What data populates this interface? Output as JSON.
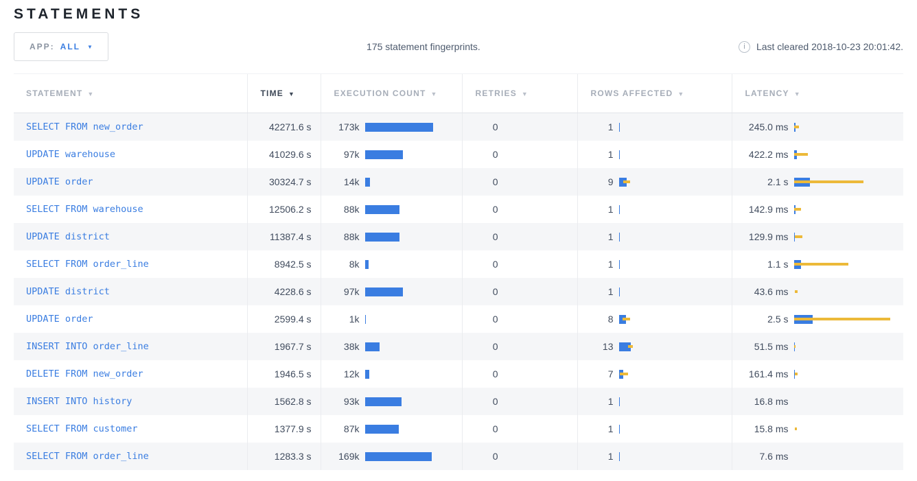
{
  "page": {
    "title": "STATEMENTS"
  },
  "toolbar": {
    "app_filter": {
      "label": "APP:",
      "value": "ALL",
      "caret": "▼"
    },
    "summary": "175 statement fingerprints.",
    "info_icon": "i",
    "last_cleared": "Last cleared 2018-10-23 20:01:42."
  },
  "colors": {
    "bar_blue": "#3a7de1",
    "whisker_yellow": "#ecb939",
    "link_blue": "#3a7de1"
  },
  "table": {
    "columns": [
      {
        "key": "statement",
        "label": "STATEMENT",
        "sort_icon": "▼",
        "active": false
      },
      {
        "key": "time",
        "label": "TIME",
        "sort_icon": "▼",
        "active": true
      },
      {
        "key": "execution-count",
        "label": "EXECUTION COUNT",
        "sort_icon": "▼",
        "active": false
      },
      {
        "key": "retries",
        "label": "RETRIES",
        "sort_icon": "▼",
        "active": false
      },
      {
        "key": "rows-affected",
        "label": "ROWS AFFECTED",
        "sort_icon": "▼",
        "active": false
      },
      {
        "key": "latency",
        "label": "LATENCY",
        "sort_icon": "▼",
        "active": false
      }
    ],
    "rows": [
      {
        "statement": "SELECT FROM new_order",
        "time": "42271.6 s",
        "execution": {
          "label": "173k",
          "bar": 99
        },
        "retries": "0",
        "rows_affected": {
          "label": "1",
          "bar": 1.5,
          "whisker": null
        },
        "latency": {
          "label": "245.0 ms",
          "bar": 2.5,
          "whisker": [
            0,
            7
          ]
        }
      },
      {
        "statement": "UPDATE warehouse",
        "time": "41029.6 s",
        "execution": {
          "label": "97k",
          "bar": 55
        },
        "retries": "0",
        "rows_affected": {
          "label": "1",
          "bar": 1.5,
          "whisker": null
        },
        "latency": {
          "label": "422.2 ms",
          "bar": 4,
          "whisker": [
            0,
            20
          ]
        }
      },
      {
        "statement": "UPDATE order",
        "time": "30324.7 s",
        "execution": {
          "label": "14k",
          "bar": 7
        },
        "retries": "0",
        "rows_affected": {
          "label": "9",
          "bar": 11,
          "whisker": [
            6,
            16
          ]
        },
        "latency": {
          "label": "2.1 s",
          "bar": 23,
          "whisker": [
            0,
            101
          ]
        }
      },
      {
        "statement": "SELECT FROM warehouse",
        "time": "12506.2 s",
        "execution": {
          "label": "88k",
          "bar": 50
        },
        "retries": "0",
        "rows_affected": {
          "label": "1",
          "bar": 1.5,
          "whisker": null
        },
        "latency": {
          "label": "142.9 ms",
          "bar": 2,
          "whisker": [
            0,
            10
          ]
        }
      },
      {
        "statement": "UPDATE district",
        "time": "11387.4 s",
        "execution": {
          "label": "88k",
          "bar": 50
        },
        "retries": "0",
        "rows_affected": {
          "label": "1",
          "bar": 1.5,
          "whisker": null
        },
        "latency": {
          "label": "129.9 ms",
          "bar": 1.5,
          "whisker": [
            1,
            12
          ]
        }
      },
      {
        "statement": "SELECT FROM order_line",
        "time": "8942.5 s",
        "execution": {
          "label": "8k",
          "bar": 5
        },
        "retries": "0",
        "rows_affected": {
          "label": "1",
          "bar": 1.5,
          "whisker": null
        },
        "latency": {
          "label": "1.1 s",
          "bar": 10,
          "whisker": [
            0,
            79
          ]
        }
      },
      {
        "statement": "UPDATE district",
        "time": "4228.6 s",
        "execution": {
          "label": "97k",
          "bar": 55
        },
        "retries": "0",
        "rows_affected": {
          "label": "1",
          "bar": 1.5,
          "whisker": null
        },
        "latency": {
          "label": "43.6 ms",
          "bar": 0,
          "whisker": [
            1,
            5
          ]
        }
      },
      {
        "statement": "UPDATE order",
        "time": "2599.4 s",
        "execution": {
          "label": "1k",
          "bar": 1.5
        },
        "retries": "0",
        "rows_affected": {
          "label": "8",
          "bar": 10,
          "whisker": [
            5,
            16
          ]
        },
        "latency": {
          "label": "2.5 s",
          "bar": 27,
          "whisker": [
            0,
            140
          ]
        }
      },
      {
        "statement": "INSERT INTO order_line",
        "time": "1967.7 s",
        "execution": {
          "label": "38k",
          "bar": 21
        },
        "retries": "0",
        "rows_affected": {
          "label": "13",
          "bar": 17,
          "whisker": [
            13,
            20
          ]
        },
        "latency": {
          "label": "51.5 ms",
          "bar": 1.5,
          "whisker": [
            0,
            2
          ]
        }
      },
      {
        "statement": "DELETE FROM new_order",
        "time": "1946.5 s",
        "execution": {
          "label": "12k",
          "bar": 6
        },
        "retries": "0",
        "rows_affected": {
          "label": "7",
          "bar": 6,
          "whisker": [
            1,
            13
          ]
        },
        "latency": {
          "label": "161.4 ms",
          "bar": 1.5,
          "whisker": [
            1,
            5
          ]
        }
      },
      {
        "statement": "INSERT INTO history",
        "time": "1562.8 s",
        "execution": {
          "label": "93k",
          "bar": 53
        },
        "retries": "0",
        "rows_affected": {
          "label": "1",
          "bar": 1.5,
          "whisker": null
        },
        "latency": {
          "label": "16.8 ms",
          "bar": 0,
          "whisker": null
        }
      },
      {
        "statement": "SELECT FROM customer",
        "time": "1377.9 s",
        "execution": {
          "label": "87k",
          "bar": 49
        },
        "retries": "0",
        "rows_affected": {
          "label": "1",
          "bar": 1.5,
          "whisker": null
        },
        "latency": {
          "label": "15.8 ms",
          "bar": 0,
          "whisker": [
            1,
            4
          ]
        }
      },
      {
        "statement": "SELECT FROM order_line",
        "time": "1283.3 s",
        "execution": {
          "label": "169k",
          "bar": 97
        },
        "retries": "0",
        "rows_affected": {
          "label": "1",
          "bar": 1.5,
          "whisker": null
        },
        "latency": {
          "label": "7.6 ms",
          "bar": 0,
          "whisker": null
        }
      }
    ]
  }
}
